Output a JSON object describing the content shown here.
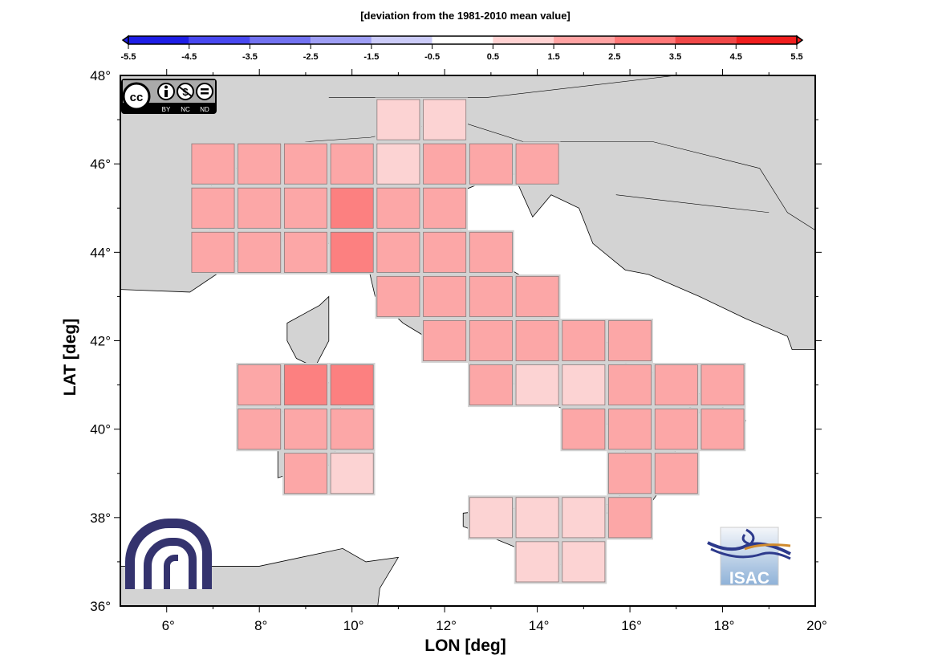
{
  "chart_data": {
    "type": "heatmap",
    "title": "[deviation from the 1981-2010 mean value]",
    "xlabel": "LON [deg]",
    "ylabel": "LAT [deg]",
    "xlim": [
      5,
      20
    ],
    "ylim": [
      36,
      48
    ],
    "x_ticks": [
      6,
      8,
      10,
      12,
      14,
      16,
      18,
      20
    ],
    "x_tick_labels": [
      "6°",
      "8°",
      "10°",
      "12°",
      "14°",
      "16°",
      "18°",
      "20°"
    ],
    "y_ticks": [
      36,
      38,
      40,
      42,
      44,
      46,
      48
    ],
    "y_tick_labels": [
      "36°",
      "38°",
      "40°",
      "42°",
      "44°",
      "46°",
      "48°"
    ],
    "colorbar": {
      "bounds": [
        -5.5,
        -4.5,
        -3.5,
        -2.5,
        -1.5,
        -0.5,
        0.5,
        1.5,
        2.5,
        3.5,
        4.5,
        5.5
      ],
      "labels": [
        "-5.5",
        "-4.5",
        "-3.5",
        "-2.5",
        "-1.5",
        "-0.5",
        "0.5",
        "1.5",
        "2.5",
        "3.5",
        "4.5",
        "5.5"
      ],
      "colors": [
        "#1e1ee6",
        "#4848f0",
        "#7272f0",
        "#9e9ef4",
        "#cbcbf8",
        "#ffffff",
        "#ffd2d2",
        "#ffa3a3",
        "#ff7878",
        "#f04848",
        "#f01e1e"
      ],
      "placement": "top"
    },
    "cells": [
      {
        "lon": 11,
        "lat": 47,
        "value": 1
      },
      {
        "lon": 12,
        "lat": 47,
        "value": 1
      },
      {
        "lon": 7,
        "lat": 46,
        "value": 2
      },
      {
        "lon": 8,
        "lat": 46,
        "value": 2
      },
      {
        "lon": 9,
        "lat": 46,
        "value": 2
      },
      {
        "lon": 10,
        "lat": 46,
        "value": 2
      },
      {
        "lon": 11,
        "lat": 46,
        "value": 1
      },
      {
        "lon": 12,
        "lat": 46,
        "value": 2
      },
      {
        "lon": 13,
        "lat": 46,
        "value": 2
      },
      {
        "lon": 14,
        "lat": 46,
        "value": 2
      },
      {
        "lon": 7,
        "lat": 45,
        "value": 2
      },
      {
        "lon": 8,
        "lat": 45,
        "value": 2
      },
      {
        "lon": 9,
        "lat": 45,
        "value": 2
      },
      {
        "lon": 10,
        "lat": 45,
        "value": 3
      },
      {
        "lon": 11,
        "lat": 45,
        "value": 2
      },
      {
        "lon": 12,
        "lat": 45,
        "value": 2
      },
      {
        "lon": 7,
        "lat": 44,
        "value": 2
      },
      {
        "lon": 8,
        "lat": 44,
        "value": 2
      },
      {
        "lon": 9,
        "lat": 44,
        "value": 2
      },
      {
        "lon": 10,
        "lat": 44,
        "value": 3
      },
      {
        "lon": 11,
        "lat": 44,
        "value": 2
      },
      {
        "lon": 12,
        "lat": 44,
        "value": 2
      },
      {
        "lon": 13,
        "lat": 44,
        "value": 2
      },
      {
        "lon": 11,
        "lat": 43,
        "value": 2
      },
      {
        "lon": 12,
        "lat": 43,
        "value": 2
      },
      {
        "lon": 13,
        "lat": 43,
        "value": 2
      },
      {
        "lon": 14,
        "lat": 43,
        "value": 2
      },
      {
        "lon": 12,
        "lat": 42,
        "value": 2
      },
      {
        "lon": 13,
        "lat": 42,
        "value": 2
      },
      {
        "lon": 14,
        "lat": 42,
        "value": 2
      },
      {
        "lon": 15,
        "lat": 42,
        "value": 2
      },
      {
        "lon": 16,
        "lat": 42,
        "value": 2
      },
      {
        "lon": 8,
        "lat": 41,
        "value": 2
      },
      {
        "lon": 9,
        "lat": 41,
        "value": 3
      },
      {
        "lon": 10,
        "lat": 41,
        "value": 3
      },
      {
        "lon": 13,
        "lat": 41,
        "value": 2
      },
      {
        "lon": 14,
        "lat": 41,
        "value": 1
      },
      {
        "lon": 15,
        "lat": 41,
        "value": 1
      },
      {
        "lon": 16,
        "lat": 41,
        "value": 2
      },
      {
        "lon": 17,
        "lat": 41,
        "value": 2
      },
      {
        "lon": 18,
        "lat": 41,
        "value": 2
      },
      {
        "lon": 8,
        "lat": 40,
        "value": 2
      },
      {
        "lon": 9,
        "lat": 40,
        "value": 2
      },
      {
        "lon": 10,
        "lat": 40,
        "value": 2
      },
      {
        "lon": 15,
        "lat": 40,
        "value": 2
      },
      {
        "lon": 16,
        "lat": 40,
        "value": 2
      },
      {
        "lon": 17,
        "lat": 40,
        "value": 2
      },
      {
        "lon": 18,
        "lat": 40,
        "value": 2
      },
      {
        "lon": 9,
        "lat": 39,
        "value": 2
      },
      {
        "lon": 10,
        "lat": 39,
        "value": 1
      },
      {
        "lon": 16,
        "lat": 39,
        "value": 2
      },
      {
        "lon": 17,
        "lat": 39,
        "value": 2
      },
      {
        "lon": 13,
        "lat": 38,
        "value": 1
      },
      {
        "lon": 14,
        "lat": 38,
        "value": 1
      },
      {
        "lon": 15,
        "lat": 38,
        "value": 1
      },
      {
        "lon": 16,
        "lat": 38,
        "value": 2
      },
      {
        "lon": 14,
        "lat": 37,
        "value": 1
      },
      {
        "lon": 15,
        "lat": 37,
        "value": 1
      }
    ]
  },
  "logos": {
    "license": [
      "cc",
      "BY",
      "NC",
      "ND"
    ],
    "isac": "ISAC"
  }
}
